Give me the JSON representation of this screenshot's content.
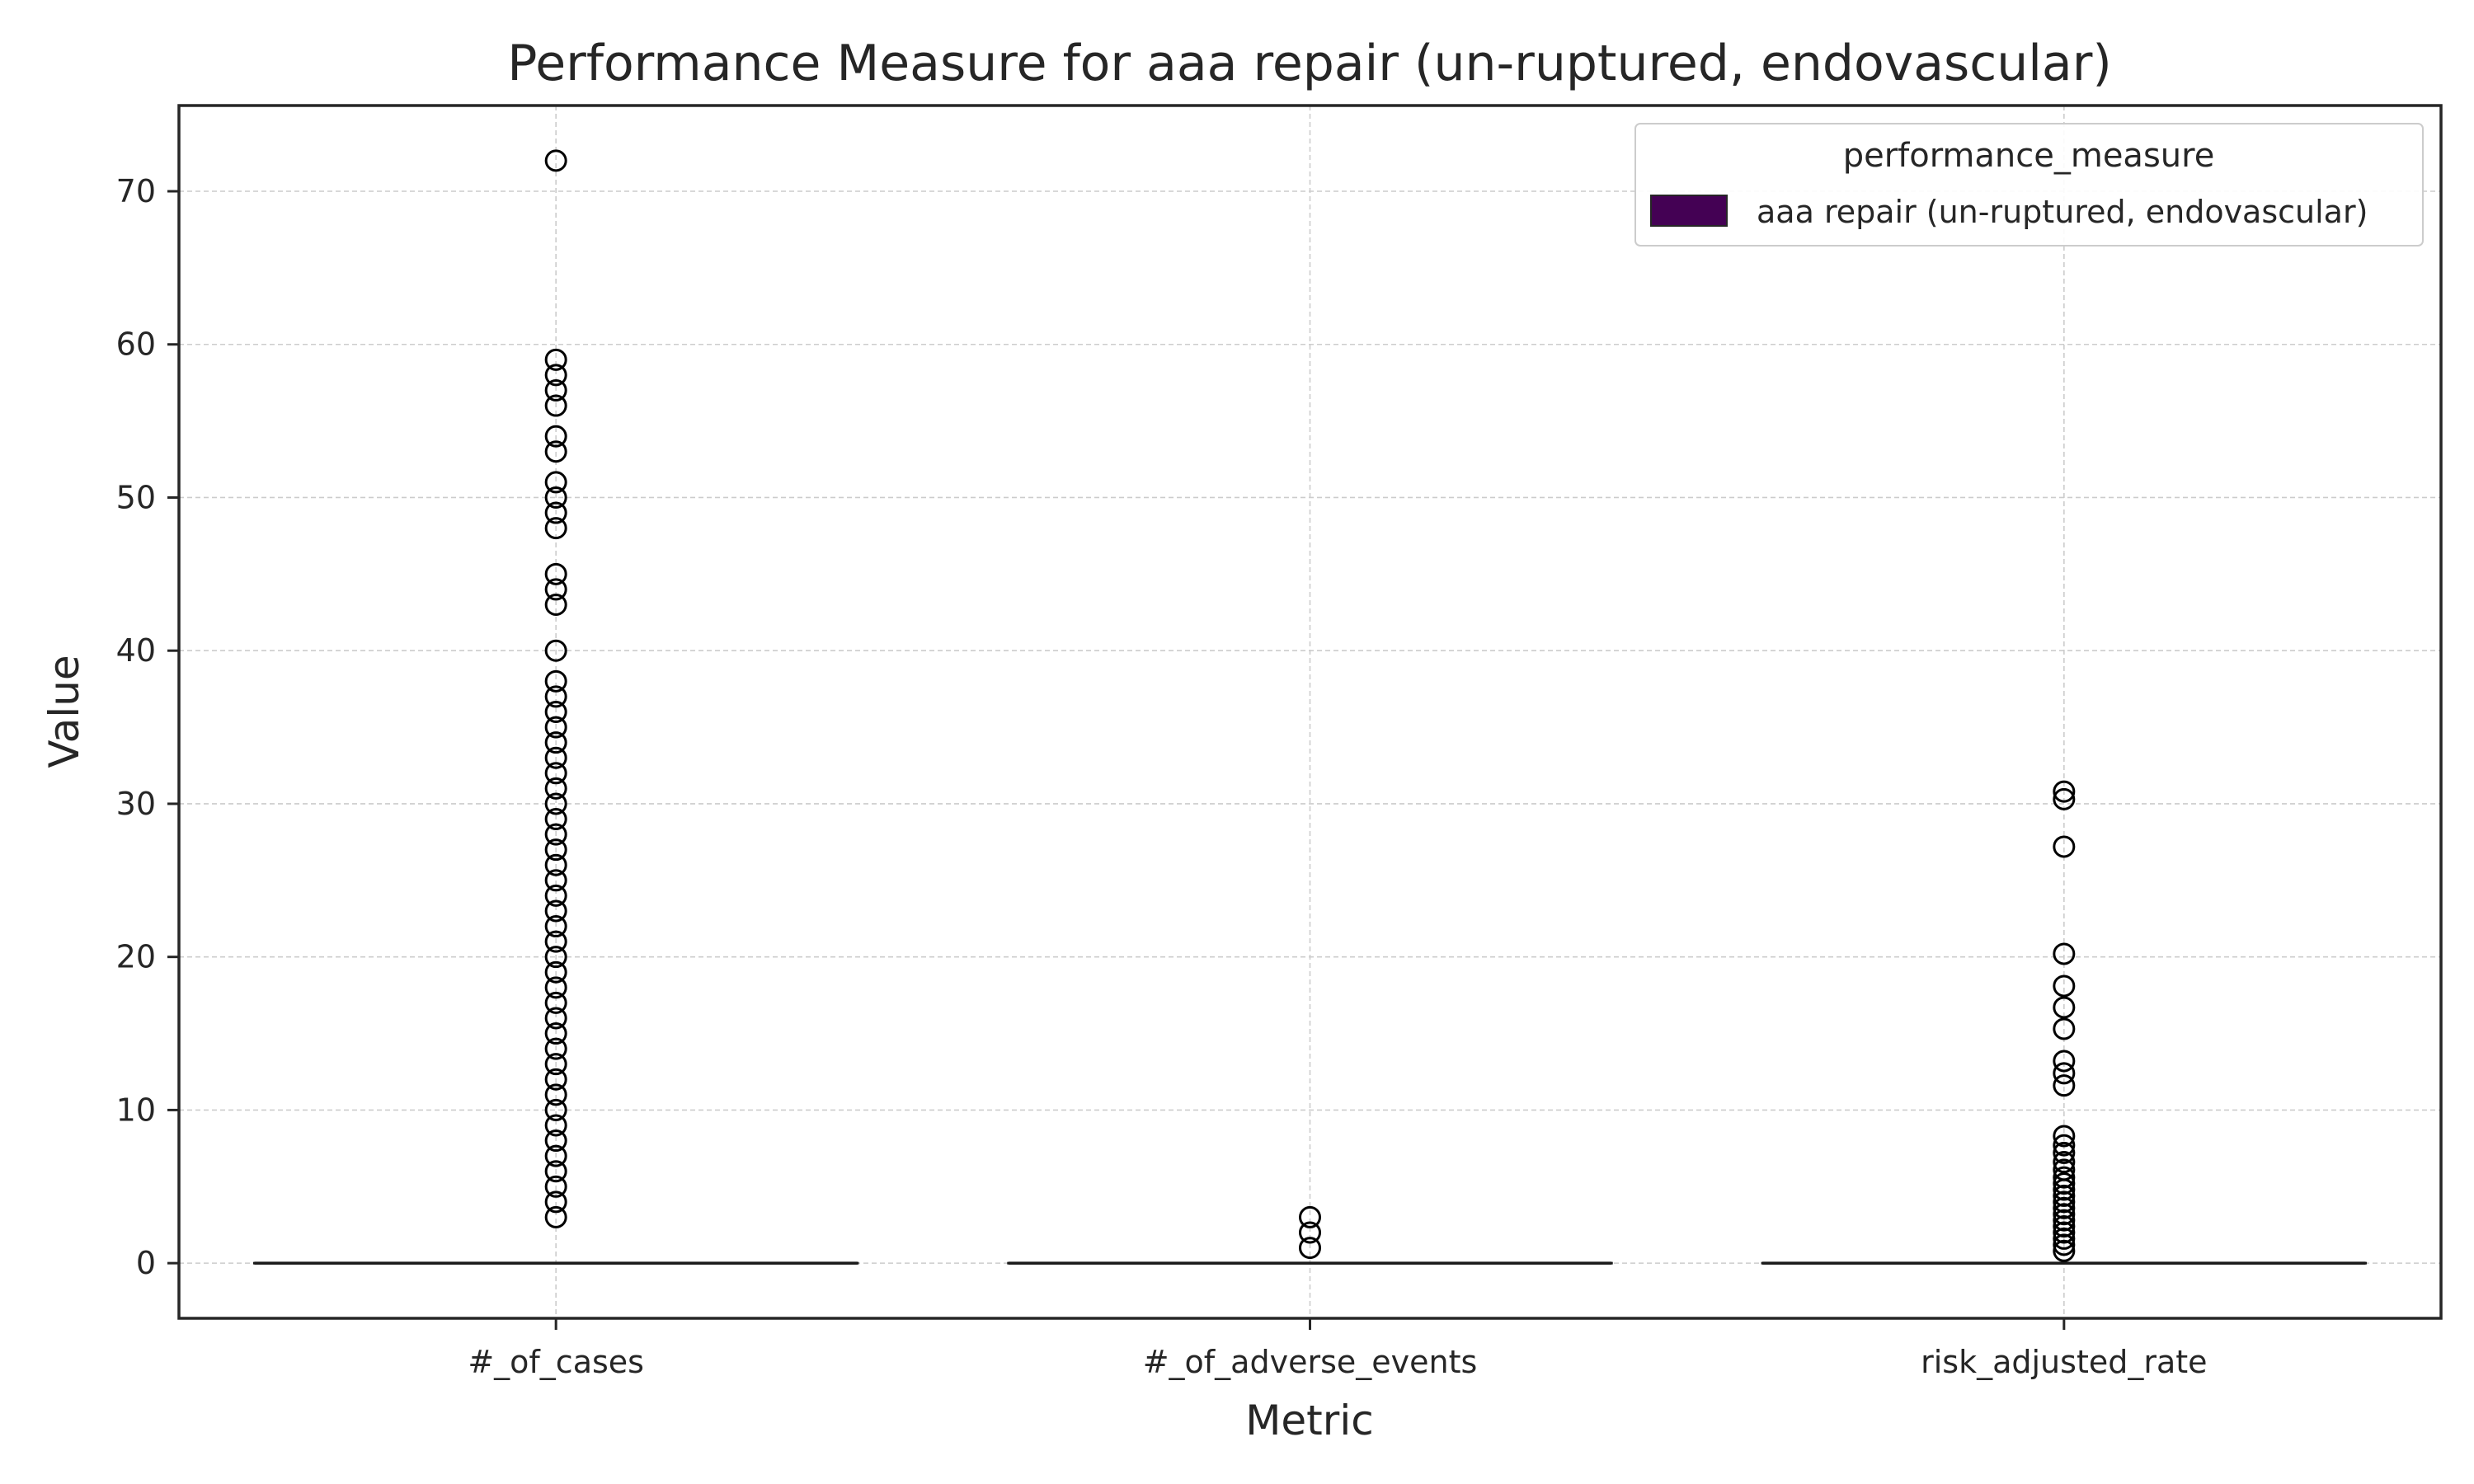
{
  "chart_data": {
    "type": "box",
    "title": "Performance Measure for aaa repair (un-ruptured, endovascular)",
    "xlabel": "Metric",
    "ylabel": "Value",
    "categories": [
      "#_of_cases",
      "#_of_adverse_events",
      "risk_adjusted_rate"
    ],
    "ylim": [
      -3.6,
      75.6
    ],
    "yticks": [
      0,
      10,
      20,
      30,
      40,
      50,
      60,
      70
    ],
    "grid": true,
    "legend": {
      "title": "performance_measure",
      "placement": "top-right",
      "entries": [
        {
          "label": "aaa repair (un-ruptured, endovascular)",
          "color": "#440154"
        }
      ]
    },
    "series": [
      {
        "category": "#_of_cases",
        "q1": 0,
        "median": 0,
        "q3": 0,
        "whisker_low": 0,
        "whisker_high": 0,
        "outliers": [
          3,
          4,
          5,
          6,
          7,
          8,
          9,
          10,
          11,
          12,
          13,
          14,
          15,
          16,
          17,
          18,
          19,
          20,
          21,
          22,
          23,
          24,
          25,
          26,
          27,
          28,
          29,
          30,
          31,
          32,
          33,
          34,
          35,
          36,
          37,
          38,
          40,
          43,
          44,
          45,
          48,
          49,
          50,
          51,
          53,
          54,
          56,
          57,
          58,
          59,
          72
        ]
      },
      {
        "category": "#_of_adverse_events",
        "q1": 0,
        "median": 0,
        "q3": 0,
        "whisker_low": 0,
        "whisker_high": 0,
        "outliers": [
          1,
          2,
          3
        ]
      },
      {
        "category": "risk_adjusted_rate",
        "q1": 0,
        "median": 0,
        "q3": 0,
        "whisker_low": 0,
        "whisker_high": 0,
        "outliers": [
          0.8,
          1.2,
          1.6,
          2.0,
          2.4,
          2.8,
          3.2,
          3.6,
          4.0,
          4.4,
          4.8,
          5.2,
          5.6,
          6.1,
          6.6,
          7.2,
          7.7,
          8.3,
          11.6,
          12.4,
          13.2,
          15.3,
          16.7,
          18.1,
          20.2,
          27.2,
          30.3,
          30.8
        ]
      }
    ]
  }
}
